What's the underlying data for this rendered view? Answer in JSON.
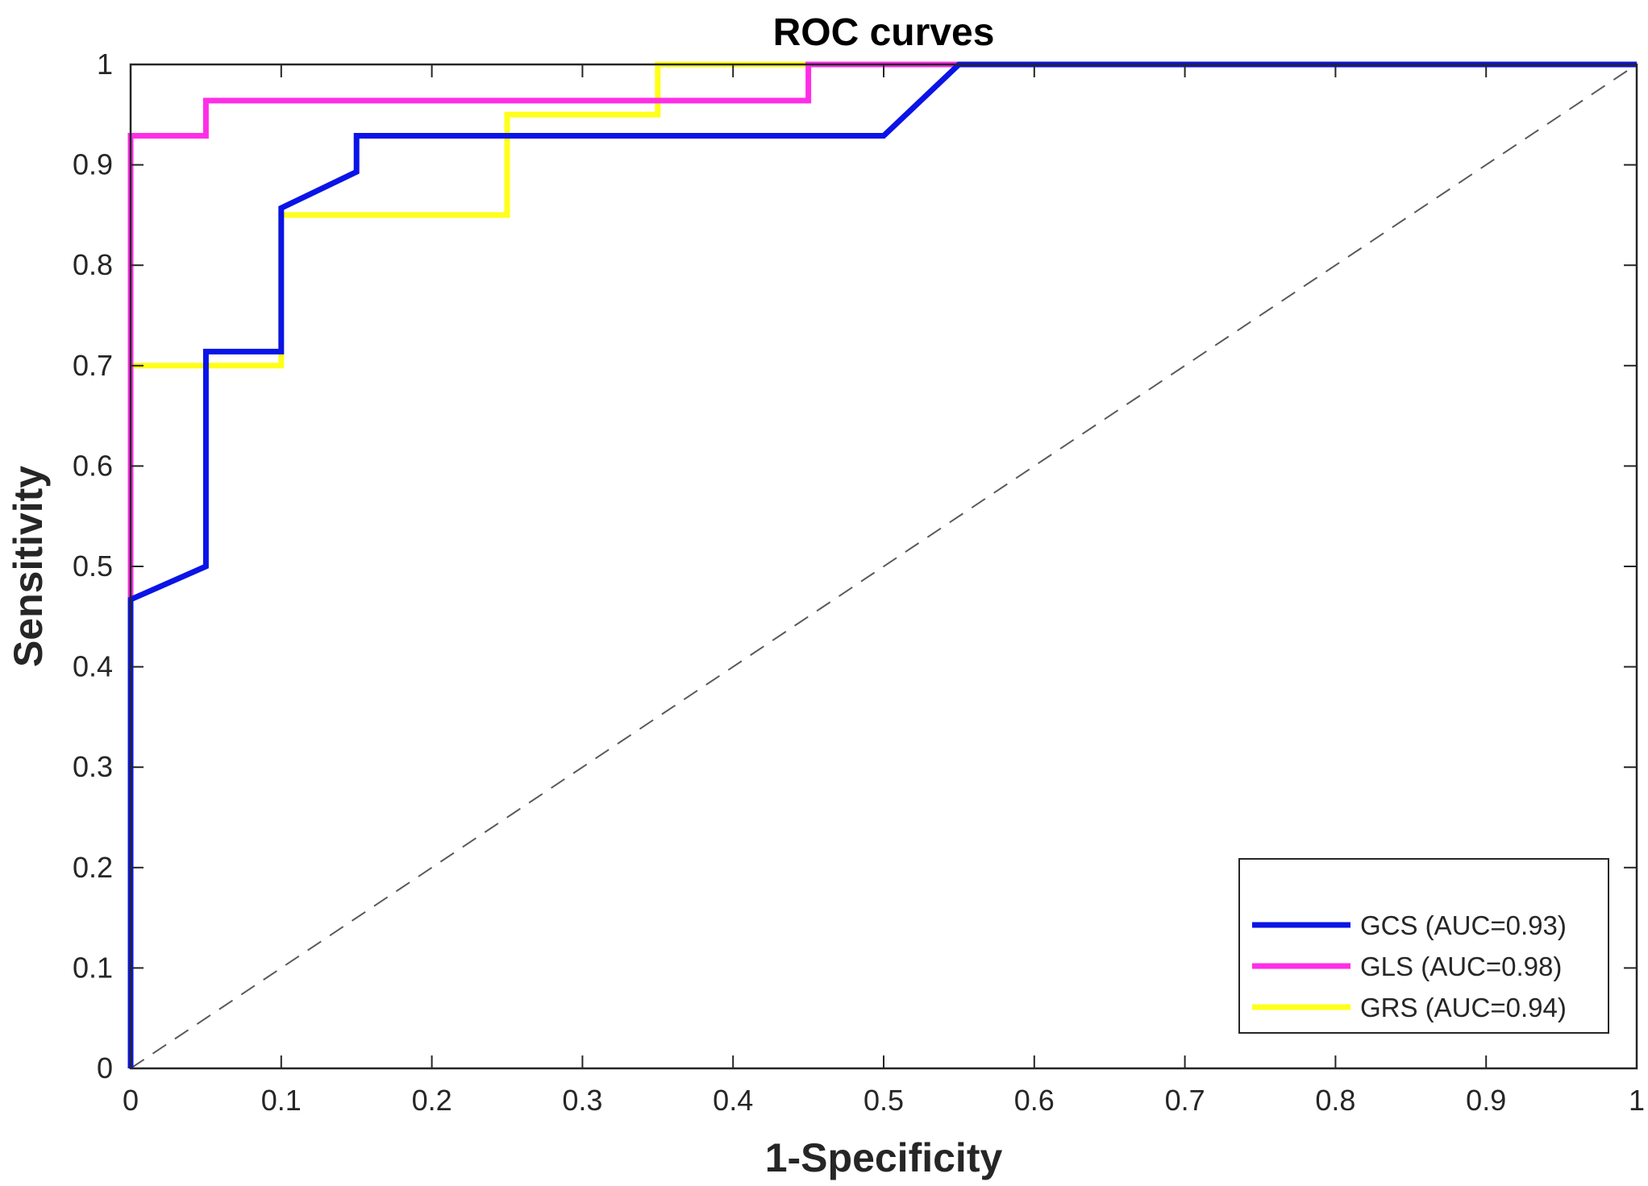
{
  "chart_data": {
    "type": "line",
    "title": "ROC curves",
    "xlabel": "1-Specificity",
    "ylabel": "Sensitivity",
    "xlim": [
      0,
      1
    ],
    "ylim": [
      0,
      1
    ],
    "xticks": [
      "0",
      "0.1",
      "0.2",
      "0.3",
      "0.4",
      "0.5",
      "0.6",
      "0.7",
      "0.8",
      "0.9",
      "1"
    ],
    "yticks": [
      "0",
      "0.1",
      "0.2",
      "0.3",
      "0.4",
      "0.5",
      "0.6",
      "0.7",
      "0.8",
      "0.9",
      "1"
    ],
    "grid": false,
    "legend_position": "bottom-right",
    "reference_line": {
      "style": "dashed",
      "color": "#5a5a5a",
      "x": [
        0,
        1
      ],
      "y": [
        0,
        1
      ]
    },
    "series": [
      {
        "name": "GCS (AUC=0.93)",
        "color": "#0a14e6",
        "x": [
          0,
          0,
          0.05,
          0.05,
          0.1,
          0.1,
          0.15,
          0.15,
          0.5,
          0.55,
          1
        ],
        "y": [
          0,
          0.467,
          0.5,
          0.714,
          0.714,
          0.857,
          0.893,
          0.929,
          0.929,
          1,
          1
        ]
      },
      {
        "name": "GLS (AUC=0.98)",
        "color": "#ff2ee6",
        "x": [
          0,
          0,
          0,
          0.05,
          0.05,
          0.45,
          0.45,
          1
        ],
        "y": [
          0,
          0.7,
          0.929,
          0.929,
          0.964,
          0.964,
          1,
          1
        ]
      },
      {
        "name": "GRS (AUC=0.94)",
        "color": "#ffff1a",
        "x": [
          0,
          0,
          0.1,
          0.1,
          0.25,
          0.25,
          0.35,
          0.35,
          1
        ],
        "y": [
          0,
          0.7,
          0.7,
          0.85,
          0.85,
          0.95,
          0.95,
          1,
          1
        ]
      }
    ]
  }
}
